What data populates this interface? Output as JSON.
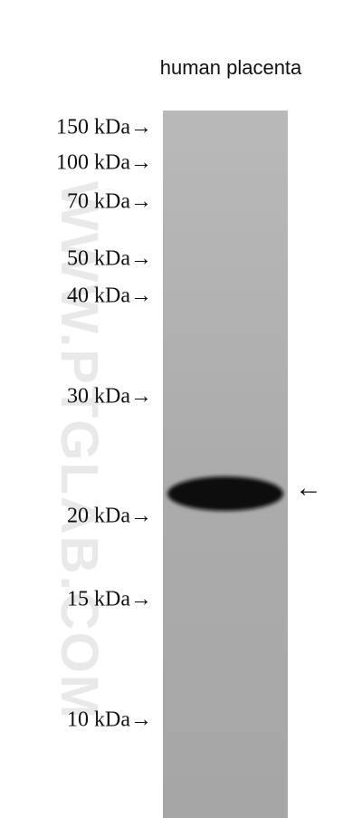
{
  "sample_label": "human placenta",
  "markers": [
    "150 kDa→",
    "100 kDa→",
    "70 kDa→",
    "50 kDa→",
    "40 kDa→",
    "30 kDa→",
    "20 kDa→",
    "15 kDa→",
    "10 kDa→"
  ],
  "band_arrow": "←",
  "watermark": "WWW.PTGLAB.COM"
}
